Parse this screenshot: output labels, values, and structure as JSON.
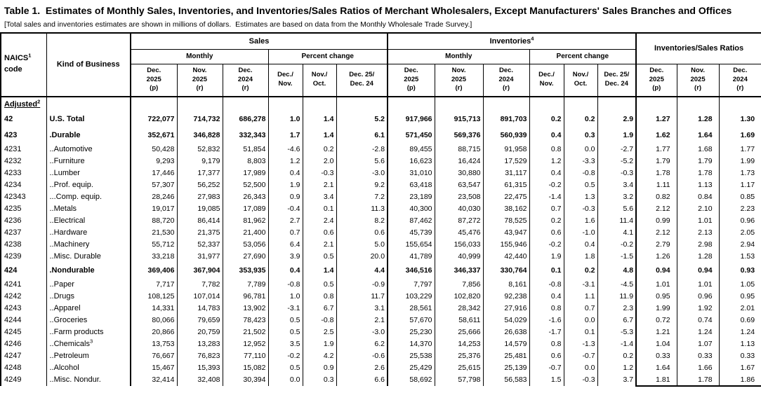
{
  "title": "Table 1.  Estimates of Monthly Sales, Inventories, and Inventories/Sales Ratios of Merchant Wholesalers, Except Manufacturers' Sales Branches and Offices",
  "note": "[Total sales and inventories estimates are shown in millions of dollars.  Estimates are based on data from the Monthly Wholesale Trade Survey.]",
  "header": {
    "naics_text": "NAICS",
    "naics_sup": "1",
    "naics_line2": "code",
    "kind": "Kind of Business",
    "sales": "Sales",
    "inventories_text": "Inventories",
    "inventories_sup": "4",
    "ratios": "Inventories/Sales Ratios",
    "monthly": "Monthly",
    "percent_change": "Percent change",
    "cols": {
      "dec25": "Dec.\n2025\n(p)",
      "nov25": "Nov.\n2025\n(r)",
      "dec24": "Dec.\n2024\n(r)",
      "pc_dec_nov": "Dec./\nNov.",
      "pc_nov_oct": "Nov./\nOct.",
      "pc_yoy": "Dec. 25/\nDec. 24"
    }
  },
  "section": {
    "label": "Adjusted",
    "sup": "2"
  },
  "rows": [
    {
      "code": "42",
      "kind": "U.S. Total",
      "b": true,
      "sales": [
        "722,077",
        "714,732",
        "686,278",
        "1.0",
        "1.4",
        "5.2"
      ],
      "inv": [
        "917,966",
        "915,713",
        "891,703",
        "0.2",
        "0.2",
        "2.9"
      ],
      "ratios": [
        "1.27",
        "1.28",
        "1.30"
      ]
    },
    {
      "code": "423",
      "kind": ".Durable",
      "b": true,
      "sales": [
        "352,671",
        "346,828",
        "332,343",
        "1.7",
        "1.4",
        "6.1"
      ],
      "inv": [
        "571,450",
        "569,376",
        "560,939",
        "0.4",
        "0.3",
        "1.9"
      ],
      "ratios": [
        "1.62",
        "1.64",
        "1.69"
      ]
    },
    {
      "code": "4231",
      "kind": "..Automotive",
      "sales": [
        "50,428",
        "52,832",
        "51,854",
        "-4.6",
        "0.2",
        "-2.8"
      ],
      "inv": [
        "89,455",
        "88,715",
        "91,958",
        "0.8",
        "0.0",
        "-2.7"
      ],
      "ratios": [
        "1.77",
        "1.68",
        "1.77"
      ]
    },
    {
      "code": "4232",
      "kind": "..Furniture",
      "sales": [
        "9,293",
        "9,179",
        "8,803",
        "1.2",
        "2.0",
        "5.6"
      ],
      "inv": [
        "16,623",
        "16,424",
        "17,529",
        "1.2",
        "-3.3",
        "-5.2"
      ],
      "ratios": [
        "1.79",
        "1.79",
        "1.99"
      ]
    },
    {
      "code": "4233",
      "kind": "..Lumber",
      "sales": [
        "17,446",
        "17,377",
        "17,989",
        "0.4",
        "-0.3",
        "-3.0"
      ],
      "inv": [
        "31,010",
        "30,880",
        "31,117",
        "0.4",
        "-0.8",
        "-0.3"
      ],
      "ratios": [
        "1.78",
        "1.78",
        "1.73"
      ]
    },
    {
      "code": "4234",
      "kind": "..Prof. equip.",
      "sales": [
        "57,307",
        "56,252",
        "52,500",
        "1.9",
        "2.1",
        "9.2"
      ],
      "inv": [
        "63,418",
        "63,547",
        "61,315",
        "-0.2",
        "0.5",
        "3.4"
      ],
      "ratios": [
        "1.11",
        "1.13",
        "1.17"
      ]
    },
    {
      "code": "42343",
      "kind": "...Comp. equip.",
      "sales": [
        "28,246",
        "27,983",
        "26,343",
        "0.9",
        "3.4",
        "7.2"
      ],
      "inv": [
        "23,189",
        "23,508",
        "22,475",
        "-1.4",
        "1.3",
        "3.2"
      ],
      "ratios": [
        "0.82",
        "0.84",
        "0.85"
      ]
    },
    {
      "code": "4235",
      "kind": "..Metals",
      "sales": [
        "19,017",
        "19,085",
        "17,089",
        "-0.4",
        "0.1",
        "11.3"
      ],
      "inv": [
        "40,300",
        "40,030",
        "38,162",
        "0.7",
        "-0.3",
        "5.6"
      ],
      "ratios": [
        "2.12",
        "2.10",
        "2.23"
      ]
    },
    {
      "code": "4236",
      "kind": "..Electrical",
      "sales": [
        "88,720",
        "86,414",
        "81,962",
        "2.7",
        "2.4",
        "8.2"
      ],
      "inv": [
        "87,462",
        "87,272",
        "78,525",
        "0.2",
        "1.6",
        "11.4"
      ],
      "ratios": [
        "0.99",
        "1.01",
        "0.96"
      ]
    },
    {
      "code": "4237",
      "kind": "..Hardware",
      "sales": [
        "21,530",
        "21,375",
        "21,400",
        "0.7",
        "0.6",
        "0.6"
      ],
      "inv": [
        "45,739",
        "45,476",
        "43,947",
        "0.6",
        "-1.0",
        "4.1"
      ],
      "ratios": [
        "2.12",
        "2.13",
        "2.05"
      ]
    },
    {
      "code": "4238",
      "kind": "..Machinery",
      "sales": [
        "55,712",
        "52,337",
        "53,056",
        "6.4",
        "2.1",
        "5.0"
      ],
      "inv": [
        "155,654",
        "156,033",
        "155,946",
        "-0.2",
        "0.4",
        "-0.2"
      ],
      "ratios": [
        "2.79",
        "2.98",
        "2.94"
      ]
    },
    {
      "code": "4239",
      "kind": "..Misc. Durable",
      "sales": [
        "33,218",
        "31,977",
        "27,690",
        "3.9",
        "0.5",
        "20.0"
      ],
      "inv": [
        "41,789",
        "40,999",
        "42,440",
        "1.9",
        "1.8",
        "-1.5"
      ],
      "ratios": [
        "1.26",
        "1.28",
        "1.53"
      ]
    },
    {
      "code": "424",
      "kind": ".Nondurable",
      "b": true,
      "sales": [
        "369,406",
        "367,904",
        "353,935",
        "0.4",
        "1.4",
        "4.4"
      ],
      "inv": [
        "346,516",
        "346,337",
        "330,764",
        "0.1",
        "0.2",
        "4.8"
      ],
      "ratios": [
        "0.94",
        "0.94",
        "0.93"
      ]
    },
    {
      "code": "4241",
      "kind": "..Paper",
      "sales": [
        "7,717",
        "7,782",
        "7,789",
        "-0.8",
        "0.5",
        "-0.9"
      ],
      "inv": [
        "7,797",
        "7,856",
        "8,161",
        "-0.8",
        "-3.1",
        "-4.5"
      ],
      "ratios": [
        "1.01",
        "1.01",
        "1.05"
      ]
    },
    {
      "code": "4242",
      "kind": "..Drugs",
      "sales": [
        "108,125",
        "107,014",
        "96,781",
        "1.0",
        "0.8",
        "11.7"
      ],
      "inv": [
        "103,229",
        "102,820",
        "92,238",
        "0.4",
        "1.1",
        "11.9"
      ],
      "ratios": [
        "0.95",
        "0.96",
        "0.95"
      ]
    },
    {
      "code": "4243",
      "kind": "..Apparel",
      "sales": [
        "14,331",
        "14,783",
        "13,902",
        "-3.1",
        "6.7",
        "3.1"
      ],
      "inv": [
        "28,561",
        "28,342",
        "27,916",
        "0.8",
        "0.7",
        "2.3"
      ],
      "ratios": [
        "1.99",
        "1.92",
        "2.01"
      ]
    },
    {
      "code": "4244",
      "kind": "..Groceries",
      "sales": [
        "80,066",
        "79,659",
        "78,423",
        "0.5",
        "-0.8",
        "2.1"
      ],
      "inv": [
        "57,670",
        "58,611",
        "54,029",
        "-1.6",
        "0.0",
        "6.7"
      ],
      "ratios": [
        "0.72",
        "0.74",
        "0.69"
      ]
    },
    {
      "code": "4245",
      "kind": "..Farm products",
      "sales": [
        "20,866",
        "20,759",
        "21,502",
        "0.5",
        "2.5",
        "-3.0"
      ],
      "inv": [
        "25,230",
        "25,666",
        "26,638",
        "-1.7",
        "0.1",
        "-5.3"
      ],
      "ratios": [
        "1.21",
        "1.24",
        "1.24"
      ]
    },
    {
      "code": "4246",
      "kind": "..Chemicals",
      "sup": "3",
      "sales": [
        "13,753",
        "13,283",
        "12,952",
        "3.5",
        "1.9",
        "6.2"
      ],
      "inv": [
        "14,370",
        "14,253",
        "14,579",
        "0.8",
        "-1.3",
        "-1.4"
      ],
      "ratios": [
        "1.04",
        "1.07",
        "1.13"
      ]
    },
    {
      "code": "4247",
      "kind": "..Petroleum",
      "sales": [
        "76,667",
        "76,823",
        "77,110",
        "-0.2",
        "4.2",
        "-0.6"
      ],
      "inv": [
        "25,538",
        "25,376",
        "25,481",
        "0.6",
        "-0.7",
        "0.2"
      ],
      "ratios": [
        "0.33",
        "0.33",
        "0.33"
      ]
    },
    {
      "code": "4248",
      "kind": "..Alcohol",
      "sales": [
        "15,467",
        "15,393",
        "15,082",
        "0.5",
        "0.9",
        "2.6"
      ],
      "inv": [
        "25,429",
        "25,615",
        "25,139",
        "-0.7",
        "0.0",
        "1.2"
      ],
      "ratios": [
        "1.64",
        "1.66",
        "1.67"
      ]
    },
    {
      "code": "4249",
      "kind": "..Misc. Nondur.",
      "sales": [
        "32,414",
        "32,408",
        "30,394",
        "0.0",
        "0.3",
        "6.6"
      ],
      "inv": [
        "58,692",
        "57,798",
        "56,583",
        "1.5",
        "-0.3",
        "3.7"
      ],
      "ratios": [
        "1.81",
        "1.78",
        "1.86"
      ]
    }
  ]
}
